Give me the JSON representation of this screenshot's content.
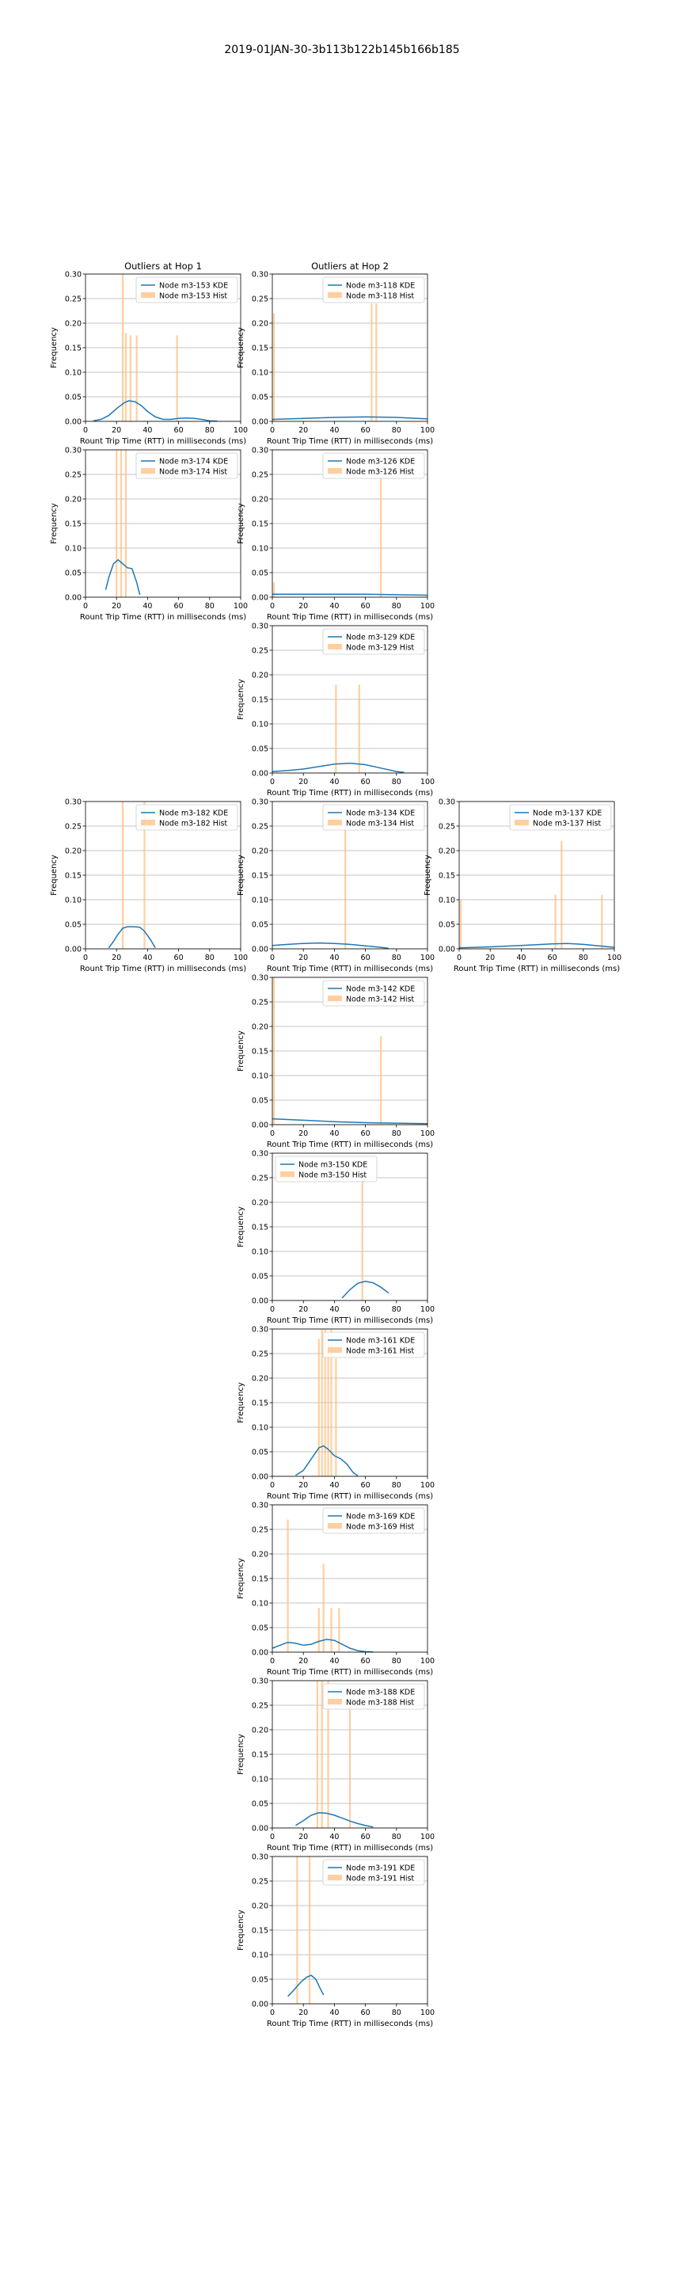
{
  "figure_title": "2019-01JAN-30-3b113b122b145b166b185",
  "column_titles": [
    "Outliers at Hop 1",
    "Outliers at Hop 2",
    ""
  ],
  "colors": {
    "kde": "#1f77b4",
    "hist": "#ffbb78",
    "grid": "#b0b0b0"
  },
  "chart_data": [
    {
      "type": "line+histogram",
      "column": 1,
      "row": 1,
      "title": "Outliers at Hop 1",
      "xlabel": "Rount Trip Time (RTT) in milliseconds (ms)",
      "ylabel": "Frequency",
      "xlim": [
        0,
        100
      ],
      "ylim": [
        0,
        0.3
      ],
      "xticks": [
        "0",
        "20",
        "40",
        "60",
        "80",
        "100"
      ],
      "yticks": [
        "0.00",
        "0.05",
        "0.10",
        "0.15",
        "0.20",
        "0.25",
        "0.30"
      ],
      "legend": [
        "Node m3-153 KDE",
        "Node m3-153 Hist"
      ],
      "kde": {
        "x": [
          5,
          10,
          15,
          20,
          25,
          28,
          32,
          36,
          40,
          45,
          50,
          55,
          60,
          65,
          70,
          75,
          80,
          85
        ],
        "y": [
          0.001,
          0.004,
          0.012,
          0.026,
          0.038,
          0.042,
          0.04,
          0.032,
          0.02,
          0.009,
          0.004,
          0.004,
          0.006,
          0.007,
          0.006,
          0.004,
          0.001,
          0.0003
        ]
      },
      "hist": {
        "x": [
          24,
          26,
          29,
          33,
          59
        ],
        "y": [
          0.3,
          0.18,
          0.175,
          0.175,
          0.175
        ]
      }
    },
    {
      "type": "line+histogram",
      "column": 2,
      "row": 1,
      "title": "Outliers at Hop 2",
      "xlabel": "Rount Trip Time (RTT) in milliseconds (ms)",
      "ylabel": "Frequency",
      "xlim": [
        0,
        100
      ],
      "ylim": [
        0,
        0.3
      ],
      "xticks": [
        "0",
        "20",
        "40",
        "60",
        "80",
        "100"
      ],
      "yticks": [
        "0.00",
        "0.05",
        "0.10",
        "0.15",
        "0.20",
        "0.25",
        "0.30"
      ],
      "legend": [
        "Node m3-118 KDE",
        "Node m3-118 Hist"
      ],
      "kde": {
        "x": [
          0,
          20,
          40,
          60,
          80,
          100
        ],
        "y": [
          0.004,
          0.006,
          0.008,
          0.009,
          0.008,
          0.005
        ]
      },
      "hist": {
        "x": [
          1,
          64,
          67
        ],
        "y": [
          0.22,
          0.24,
          0.24
        ]
      }
    },
    {
      "type": "line+histogram",
      "column": 1,
      "row": 2,
      "xlabel": "Rount Trip Time (RTT) in milliseconds (ms)",
      "ylabel": "Frequency",
      "xlim": [
        0,
        100
      ],
      "ylim": [
        0,
        0.3
      ],
      "xticks": [
        "0",
        "20",
        "40",
        "60",
        "80",
        "100"
      ],
      "yticks": [
        "0.00",
        "0.05",
        "0.10",
        "0.15",
        "0.20",
        "0.25",
        "0.30"
      ],
      "legend": [
        "Node m3-174 KDE",
        "Node m3-174 Hist"
      ],
      "kde": {
        "x": [
          13,
          15,
          18,
          21,
          24,
          27,
          30,
          33,
          35
        ],
        "y": [
          0.015,
          0.04,
          0.068,
          0.076,
          0.068,
          0.06,
          0.058,
          0.03,
          0.005
        ]
      },
      "hist": {
        "x": [
          20,
          23,
          26
        ],
        "y": [
          0.3,
          0.3,
          0.3
        ]
      }
    },
    {
      "type": "line+histogram",
      "column": 2,
      "row": 2,
      "xlabel": "Rount Trip Time (RTT) in milliseconds (ms)",
      "ylabel": "Frequency",
      "xlim": [
        0,
        100
      ],
      "ylim": [
        0,
        0.3
      ],
      "xticks": [
        "0",
        "20",
        "40",
        "60",
        "80",
        "100"
      ],
      "yticks": [
        "0.00",
        "0.05",
        "0.10",
        "0.15",
        "0.20",
        "0.25",
        "0.30"
      ],
      "legend": [
        "Node m3-126 KDE",
        "Node m3-126 Hist"
      ],
      "kde": {
        "x": [
          0,
          20,
          40,
          60,
          80,
          100
        ],
        "y": [
          0.006,
          0.006,
          0.006,
          0.006,
          0.005,
          0.004
        ]
      },
      "hist": {
        "x": [
          1,
          70
        ],
        "y": [
          0.03,
          0.26
        ]
      }
    },
    {
      "type": "line+histogram",
      "column": 2,
      "row": 3,
      "xlabel": "Rount Trip Time (RTT) in milliseconds (ms)",
      "ylabel": "Frequency",
      "xlim": [
        0,
        100
      ],
      "ylim": [
        0,
        0.3
      ],
      "xticks": [
        "0",
        "20",
        "40",
        "60",
        "80",
        "100"
      ],
      "yticks": [
        "0.00",
        "0.05",
        "0.10",
        "0.15",
        "0.20",
        "0.25",
        "0.30"
      ],
      "legend": [
        "Node m3-129 KDE",
        "Node m3-129 Hist"
      ],
      "kde": {
        "x": [
          0,
          10,
          20,
          30,
          40,
          50,
          60,
          70,
          80,
          85
        ],
        "y": [
          0.003,
          0.005,
          0.008,
          0.013,
          0.018,
          0.02,
          0.017,
          0.01,
          0.003,
          0.001
        ]
      },
      "hist": {
        "x": [
          41,
          56
        ],
        "y": [
          0.18,
          0.18
        ]
      }
    },
    {
      "type": "line+histogram",
      "column": 1,
      "row": 4,
      "xlabel": "Rount Trip Time (RTT) in milliseconds (ms)",
      "ylabel": "Frequency",
      "xlim": [
        0,
        100
      ],
      "ylim": [
        0,
        0.3
      ],
      "xticks": [
        "0",
        "20",
        "40",
        "60",
        "80",
        "100"
      ],
      "yticks": [
        "0.00",
        "0.05",
        "0.10",
        "0.15",
        "0.20",
        "0.25",
        "0.30"
      ],
      "legend": [
        "Node m3-182 KDE",
        "Node m3-182 Hist"
      ],
      "kde": {
        "x": [
          15,
          18,
          21,
          24,
          27,
          31,
          35,
          38,
          42,
          45
        ],
        "y": [
          0.002,
          0.015,
          0.03,
          0.042,
          0.045,
          0.045,
          0.044,
          0.036,
          0.018,
          0.002
        ]
      },
      "hist": {
        "x": [
          24,
          38
        ],
        "y": [
          0.3,
          0.3
        ]
      }
    },
    {
      "type": "line+histogram",
      "column": 2,
      "row": 4,
      "xlabel": "Rount Trip Time (RTT) in milliseconds (ms)",
      "ylabel": "Frequency",
      "xlim": [
        0,
        100
      ],
      "ylim": [
        0,
        0.3
      ],
      "xticks": [
        "0",
        "20",
        "40",
        "60",
        "80",
        "100"
      ],
      "yticks": [
        "0.00",
        "0.05",
        "0.10",
        "0.15",
        "0.20",
        "0.25",
        "0.30"
      ],
      "legend": [
        "Node m3-134 KDE",
        "Node m3-134 Hist"
      ],
      "kde": {
        "x": [
          0,
          10,
          20,
          30,
          40,
          50,
          60,
          70,
          75
        ],
        "y": [
          0.007,
          0.009,
          0.011,
          0.012,
          0.011,
          0.009,
          0.006,
          0.003,
          0.001
        ]
      },
      "hist": {
        "x": [
          47
        ],
        "y": [
          0.25
        ]
      }
    },
    {
      "type": "line+histogram",
      "column": 3,
      "row": 4,
      "xlabel": "Rount Trip Time (RTT) in milliseconds (ms)",
      "ylabel": "Frequency",
      "xlim": [
        0,
        100
      ],
      "ylim": [
        0,
        0.3
      ],
      "xticks": [
        "0",
        "20",
        "40",
        "60",
        "80",
        "100"
      ],
      "yticks": [
        "0.00",
        "0.05",
        "0.10",
        "0.15",
        "0.20",
        "0.25",
        "0.30"
      ],
      "legend": [
        "Node m3-137 KDE",
        "Node m3-137 Hist"
      ],
      "kde": {
        "x": [
          0,
          20,
          40,
          60,
          70,
          80,
          90,
          100
        ],
        "y": [
          0.002,
          0.004,
          0.007,
          0.01,
          0.011,
          0.009,
          0.006,
          0.003
        ]
      },
      "hist": {
        "x": [
          1,
          62,
          66,
          92
        ],
        "y": [
          0.1,
          0.11,
          0.22,
          0.11
        ]
      }
    },
    {
      "type": "line+histogram",
      "column": 2,
      "row": 5,
      "xlabel": "Rount Trip Time (RTT) in milliseconds (ms)",
      "ylabel": "Frequency",
      "xlim": [
        0,
        100
      ],
      "ylim": [
        0,
        0.3
      ],
      "xticks": [
        "0",
        "20",
        "40",
        "60",
        "80",
        "100"
      ],
      "yticks": [
        "0.00",
        "0.05",
        "0.10",
        "0.15",
        "0.20",
        "0.25",
        "0.30"
      ],
      "legend": [
        "Node m3-142 KDE",
        "Node m3-142 Hist"
      ],
      "kde": {
        "x": [
          0,
          20,
          40,
          60,
          80,
          100
        ],
        "y": [
          0.012,
          0.009,
          0.006,
          0.004,
          0.003,
          0.002
        ]
      },
      "hist": {
        "x": [
          1,
          70
        ],
        "y": [
          0.3,
          0.18
        ]
      }
    },
    {
      "type": "line+histogram",
      "column": 2,
      "row": 6,
      "xlabel": "Rount Trip Time (RTT) in milliseconds (ms)",
      "ylabel": "Frequency",
      "xlim": [
        0,
        100
      ],
      "ylim": [
        0,
        0.3
      ],
      "xticks": [
        "0",
        "20",
        "40",
        "60",
        "80",
        "100"
      ],
      "yticks": [
        "0.00",
        "0.05",
        "0.10",
        "0.15",
        "0.20",
        "0.25",
        "0.30"
      ],
      "legend": [
        "Node m3-150 KDE",
        "Node m3-150 Hist"
      ],
      "kde": {
        "x": [
          45,
          50,
          55,
          60,
          65,
          70,
          75
        ],
        "y": [
          0.005,
          0.022,
          0.035,
          0.039,
          0.036,
          0.027,
          0.015
        ]
      },
      "hist": {
        "x": [
          58
        ],
        "y": [
          0.25
        ]
      }
    },
    {
      "type": "line+histogram",
      "column": 2,
      "row": 7,
      "xlabel": "Rount Trip Time (RTT) in milliseconds (ms)",
      "ylabel": "Frequency",
      "xlim": [
        0,
        100
      ],
      "ylim": [
        0,
        0.3
      ],
      "xticks": [
        "0",
        "20",
        "40",
        "60",
        "80",
        "100"
      ],
      "yticks": [
        "0.00",
        "0.05",
        "0.10",
        "0.15",
        "0.20",
        "0.25",
        "0.30"
      ],
      "legend": [
        "Node m3-161 KDE",
        "Node m3-161 Hist"
      ],
      "kde": {
        "x": [
          15,
          20,
          25,
          30,
          33,
          36,
          40,
          44,
          48,
          52,
          55
        ],
        "y": [
          0.002,
          0.012,
          0.035,
          0.058,
          0.062,
          0.055,
          0.042,
          0.036,
          0.025,
          0.008,
          0.001
        ]
      },
      "hist": {
        "x": [
          30,
          32,
          34,
          36,
          38,
          41
        ],
        "y": [
          0.28,
          0.3,
          0.3,
          0.29,
          0.3,
          0.24
        ]
      }
    },
    {
      "type": "line+histogram",
      "column": 2,
      "row": 8,
      "xlabel": "Rount Trip Time (RTT) in milliseconds (ms)",
      "ylabel": "Frequency",
      "xlim": [
        0,
        100
      ],
      "ylim": [
        0,
        0.3
      ],
      "xticks": [
        "0",
        "20",
        "40",
        "60",
        "80",
        "100"
      ],
      "yticks": [
        "0.00",
        "0.05",
        "0.10",
        "0.15",
        "0.20",
        "0.25",
        "0.30"
      ],
      "legend": [
        "Node m3-169 KDE",
        "Node m3-169 Hist"
      ],
      "kde": {
        "x": [
          0,
          5,
          10,
          15,
          20,
          25,
          30,
          35,
          40,
          45,
          50,
          55,
          60,
          65
        ],
        "y": [
          0.008,
          0.014,
          0.02,
          0.018,
          0.014,
          0.016,
          0.022,
          0.026,
          0.024,
          0.016,
          0.008,
          0.003,
          0.001,
          0.0005
        ]
      },
      "hist": {
        "x": [
          10,
          30,
          33,
          38,
          43
        ],
        "y": [
          0.27,
          0.09,
          0.18,
          0.09,
          0.09
        ]
      }
    },
    {
      "type": "line+histogram",
      "column": 2,
      "row": 9,
      "xlabel": "Rount Trip Time (RTT) in milliseconds (ms)",
      "ylabel": "Frequency",
      "xlim": [
        0,
        100
      ],
      "ylim": [
        0,
        0.3
      ],
      "xticks": [
        "0",
        "20",
        "40",
        "60",
        "80",
        "100"
      ],
      "yticks": [
        "0.00",
        "0.05",
        "0.10",
        "0.15",
        "0.20",
        "0.25",
        "0.30"
      ],
      "legend": [
        "Node m3-188 KDE",
        "Node m3-188 Hist"
      ],
      "kde": {
        "x": [
          15,
          20,
          25,
          30,
          35,
          40,
          45,
          50,
          55,
          60,
          65
        ],
        "y": [
          0.005,
          0.015,
          0.026,
          0.031,
          0.03,
          0.026,
          0.02,
          0.014,
          0.009,
          0.005,
          0.002
        ]
      },
      "hist": {
        "x": [
          29,
          32,
          36,
          50
        ],
        "y": [
          0.3,
          0.3,
          0.3,
          0.25
        ]
      }
    },
    {
      "type": "line+histogram",
      "column": 2,
      "row": 10,
      "xlabel": "Rount Trip Time (RTT) in milliseconds (ms)",
      "ylabel": "Frequency",
      "xlim": [
        0,
        100
      ],
      "ylim": [
        0,
        0.3
      ],
      "xticks": [
        "0",
        "20",
        "40",
        "60",
        "80",
        "100"
      ],
      "yticks": [
        "0.00",
        "0.05",
        "0.10",
        "0.15",
        "0.20",
        "0.25",
        "0.30"
      ],
      "legend": [
        "Node m3-191 KDE",
        "Node m3-191 Hist"
      ],
      "kde": {
        "x": [
          10,
          13,
          16,
          19,
          22,
          25,
          28,
          31,
          33
        ],
        "y": [
          0.015,
          0.025,
          0.036,
          0.046,
          0.054,
          0.058,
          0.05,
          0.03,
          0.018
        ]
      },
      "hist": {
        "x": [
          16,
          24
        ],
        "y": [
          0.3,
          0.3
        ]
      }
    }
  ]
}
